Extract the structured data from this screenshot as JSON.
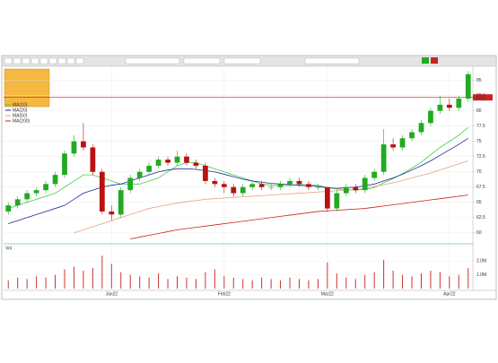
{
  "chart_data": {
    "type": "candlestick",
    "categories": [
      null,
      null,
      null,
      null,
      null,
      null,
      null,
      null,
      null,
      null,
      null,
      "Jan22",
      null,
      null,
      null,
      null,
      null,
      null,
      null,
      null,
      null,
      null,
      null,
      "Feb22",
      null,
      null,
      null,
      null,
      null,
      null,
      null,
      null,
      null,
      null,
      "Mar22",
      null,
      null,
      null,
      null,
      null,
      null,
      null,
      null,
      null,
      null,
      null,
      null,
      "Apr22",
      null,
      null
    ],
    "open": [
      63.5,
      64.5,
      65.5,
      66.5,
      67,
      68,
      69.5,
      73,
      75,
      74,
      70,
      63.5,
      63,
      67,
      69,
      70,
      71,
      72,
      71.5,
      72.5,
      71.5,
      71,
      68.5,
      68,
      67.5,
      66.5,
      67.5,
      68,
      67.5,
      67.5,
      68,
      68.5,
      68,
      67.5,
      67.5,
      64,
      66.5,
      67.5,
      67,
      69,
      70,
      74.5,
      74,
      75.5,
      76.5,
      78,
      80,
      81,
      80.5,
      82
    ],
    "high": [
      65,
      66,
      67,
      67.5,
      68.5,
      70,
      73.5,
      76,
      78,
      74.5,
      70.5,
      64.5,
      67.5,
      69.5,
      70.5,
      71.5,
      72.5,
      72.5,
      73.5,
      73,
      72,
      71.5,
      69,
      68.5,
      68,
      68,
      68.5,
      68.5,
      68,
      68.5,
      69,
      69,
      68.5,
      68,
      67.5,
      67,
      68,
      68,
      69.5,
      70.5,
      77,
      75.5,
      76,
      77,
      78.5,
      80.5,
      82.5,
      82,
      82.5,
      86.5
    ],
    "low": [
      63,
      64,
      65,
      66,
      66.5,
      67.5,
      69,
      72.5,
      73.5,
      69.5,
      63,
      62,
      62.5,
      66.5,
      68.5,
      69.5,
      70.5,
      71,
      71,
      71,
      70.5,
      68,
      67.5,
      66.5,
      66,
      66,
      67,
      67,
      67,
      67,
      67.5,
      67.5,
      67,
      67,
      63.5,
      63.5,
      66,
      66.5,
      66.5,
      68.5,
      69.5,
      73.5,
      73.5,
      75,
      76,
      77.5,
      79.5,
      80,
      80,
      81.5
    ],
    "close": [
      64.5,
      65.5,
      66.5,
      67,
      68,
      69.5,
      73,
      75,
      74,
      70,
      63.5,
      63,
      67,
      69,
      70,
      71,
      72,
      71.5,
      72.5,
      71.5,
      71,
      68.5,
      68,
      67.5,
      66.5,
      67.5,
      68,
      67.5,
      67.5,
      68,
      68.5,
      68,
      67.5,
      67.5,
      64,
      66.5,
      67.5,
      67,
      69,
      70,
      74.5,
      74,
      75.5,
      76.5,
      78,
      80,
      81,
      80.5,
      82,
      86
    ],
    "volume": [
      0.6,
      0.8,
      0.7,
      0.9,
      0.8,
      1.0,
      1.4,
      1.6,
      1.3,
      1.5,
      2.4,
      1.8,
      1.2,
      1.0,
      0.9,
      0.8,
      1.1,
      0.7,
      0.9,
      0.8,
      0.7,
      1.2,
      1.4,
      0.9,
      0.8,
      0.7,
      0.6,
      0.8,
      0.7,
      0.6,
      0.8,
      0.7,
      0.6,
      0.7,
      1.9,
      1.1,
      0.8,
      0.7,
      1.0,
      1.2,
      2.1,
      1.3,
      1.0,
      0.9,
      1.1,
      1.3,
      1.2,
      0.9,
      1.0,
      1.5
    ],
    "up_color": "#22aa22",
    "down_color": "#bb1111",
    "volume_color": "#cc3333",
    "series": [
      {
        "name": "MA(10)",
        "color": "#44cc44",
        "values": [
          64,
          64.5,
          65,
          65.5,
          66,
          66.5,
          67.5,
          68.5,
          69.5,
          69.5,
          69,
          68.5,
          68,
          68,
          68,
          68.5,
          69,
          70,
          71,
          71.5,
          71.5,
          71,
          70.5,
          70,
          69.5,
          69,
          68.5,
          68,
          67.8,
          67.7,
          67.8,
          67.9,
          67.9,
          67.8,
          67.4,
          67.2,
          67.1,
          67,
          67.1,
          67.4,
          68.2,
          68.9,
          69.7,
          70.6,
          71.6,
          72.8,
          74,
          75,
          76,
          77.3
        ]
      },
      {
        "name": "MA(20)",
        "color": "#1a2a9a",
        "values": [
          61.5,
          62,
          62.5,
          63,
          63.5,
          64,
          64.5,
          65.5,
          66.5,
          67,
          67.5,
          67.8,
          68,
          68.5,
          69,
          69.5,
          70,
          70.3,
          70.5,
          70.5,
          70.4,
          70.2,
          70,
          69.6,
          69.2,
          68.8,
          68.5,
          68.3,
          68.1,
          68,
          67.9,
          67.8,
          67.7,
          67.6,
          67.4,
          67.3,
          67.4,
          67.5,
          67.7,
          68,
          68.5,
          69,
          69.6,
          70.3,
          71,
          71.8,
          72.7,
          73.6,
          74.5,
          75.5
        ]
      },
      {
        "name": "MA(50)",
        "color": "#e8a080",
        "values": [
          null,
          null,
          null,
          null,
          null,
          null,
          null,
          60,
          60.5,
          61,
          61.5,
          62,
          62.5,
          63,
          63.5,
          64,
          64.3,
          64.6,
          64.9,
          65.1,
          65.3,
          65.5,
          65.6,
          65.7,
          65.8,
          65.9,
          66,
          66.1,
          66.2,
          66.3,
          66.4,
          66.5,
          66.6,
          66.7,
          66.8,
          66.9,
          67,
          67.1,
          67.3,
          67.6,
          67.9,
          68.2,
          68.6,
          69,
          69.4,
          69.8,
          70.3,
          70.8,
          71.3,
          71.8
        ]
      },
      {
        "name": "MA(200)",
        "color": "#cc2222",
        "values": [
          null,
          null,
          null,
          null,
          null,
          null,
          null,
          null,
          null,
          null,
          null,
          null,
          null,
          59,
          59.3,
          59.6,
          59.9,
          60.2,
          60.5,
          60.7,
          60.9,
          61.1,
          61.3,
          61.5,
          61.7,
          61.9,
          62.1,
          62.3,
          62.5,
          62.7,
          62.9,
          63.1,
          63.3,
          63.5,
          63.6,
          63.7,
          63.8,
          63.9,
          64,
          64.2,
          64.4,
          64.6,
          64.8,
          65,
          65.2,
          65.4,
          65.6,
          65.8,
          66,
          66.2
        ]
      }
    ],
    "price_line": 82.2,
    "ylim": [
      58.5,
      87
    ],
    "yticks": [
      60,
      62.5,
      65,
      67.5,
      70,
      72.5,
      75,
      77.5,
      80,
      82.5,
      85
    ],
    "volume_title": "Vol",
    "volume_ylim": [
      0,
      3
    ],
    "volume_yticks": [
      {
        "value": 1,
        "label": "1.0M"
      },
      {
        "value": 2,
        "label": "2.0M"
      }
    ],
    "grid": true
  }
}
